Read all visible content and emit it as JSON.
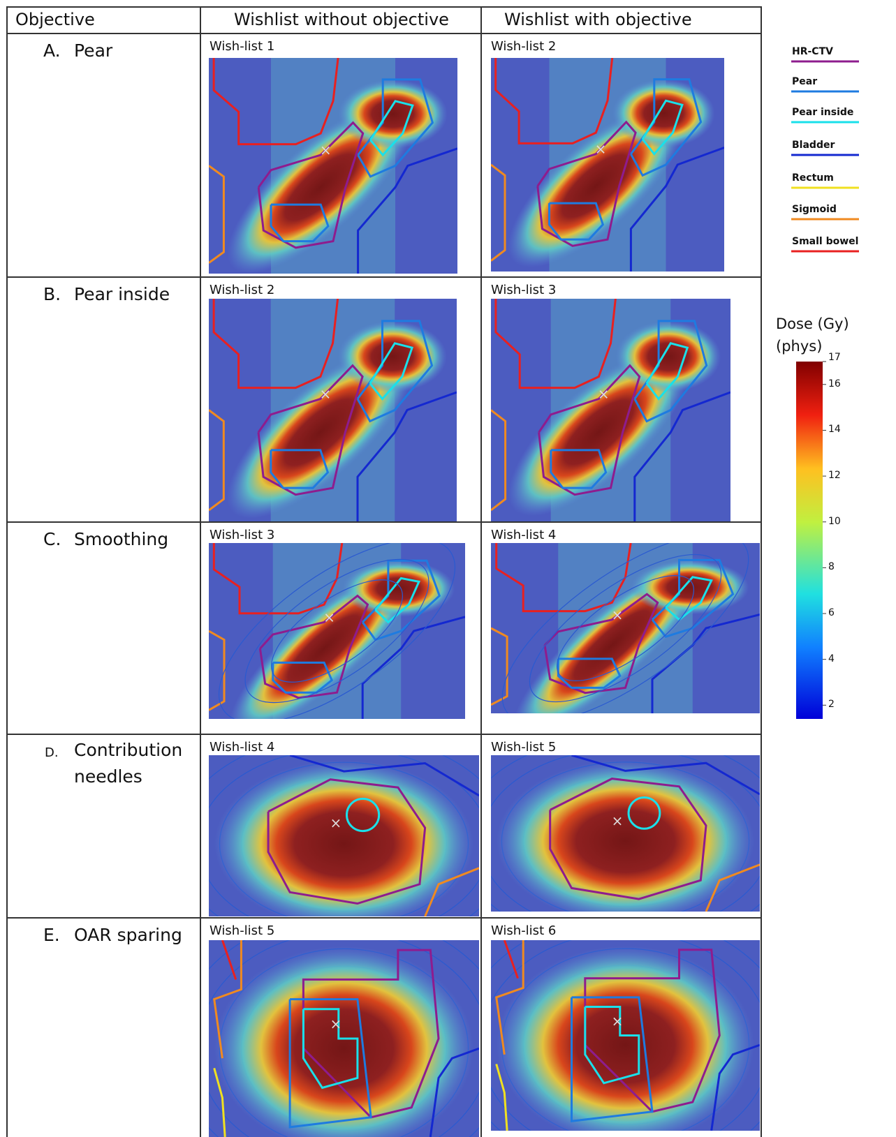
{
  "table": {
    "header": [
      "Objective",
      "Wishlist without objective",
      "Wishlist with objective"
    ],
    "rows": [
      {
        "letter": "A.",
        "objective": "Pear",
        "left": "Wish-list 1",
        "right": "Wish-list 2"
      },
      {
        "letter": "B.",
        "objective": "Pear inside",
        "left": "Wish-list 2",
        "right": "Wish-list 3"
      },
      {
        "letter": "C.",
        "objective": "Smoothing",
        "left": "Wish-list 3",
        "right": "Wish-list 4"
      },
      {
        "letter": "D.",
        "objective": "Contribution needles",
        "left": "Wish-list 4",
        "right": "Wish-list 5"
      },
      {
        "letter": "E.",
        "objective": "OAR sparing",
        "left": "Wish-list 5",
        "right": "Wish-list 6"
      }
    ]
  },
  "legend": [
    {
      "label": "HR-CTV",
      "color": "#8e1c8e"
    },
    {
      "label": "Pear",
      "color": "#1e7be0"
    },
    {
      "label": "Pear inside",
      "color": "#19e0ea"
    },
    {
      "label": "Bladder",
      "color": "#1428d0"
    },
    {
      "label": "Rectum",
      "color": "#f0e020"
    },
    {
      "label": "Sigmoid",
      "color": "#f08a20"
    },
    {
      "label": "Small bowel",
      "color": "#e82020"
    }
  ],
  "colorbar": {
    "title": "Dose (Gy)",
    "subtitle": "(phys)",
    "range": [
      1.4,
      17
    ],
    "ticks": [
      2,
      4,
      6,
      8,
      10,
      12,
      14,
      16,
      17
    ]
  }
}
